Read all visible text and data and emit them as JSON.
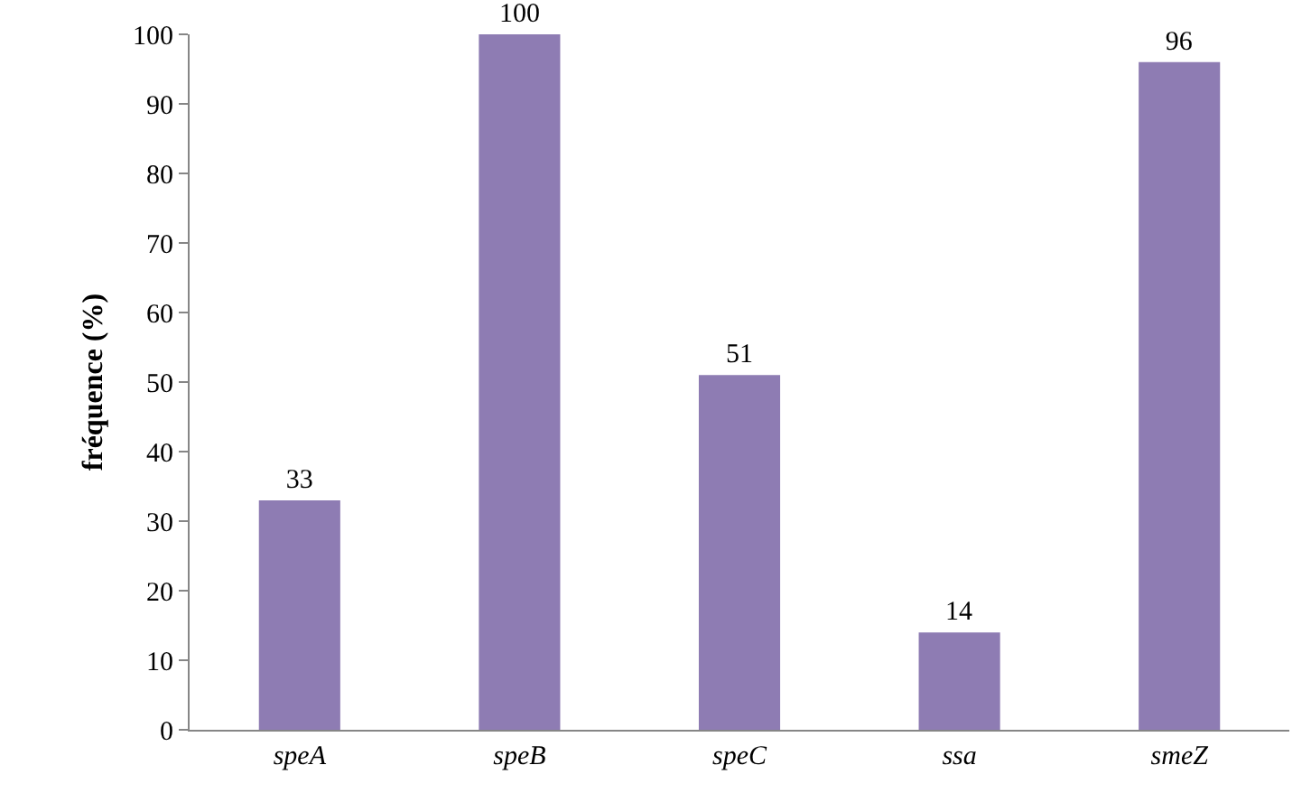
{
  "chart_data": {
    "type": "bar",
    "ylabel": "fréquence (%)",
    "categories": [
      "speA",
      "speB",
      "speC",
      "ssa",
      "smeZ"
    ],
    "values": [
      33,
      100,
      51,
      14,
      96
    ],
    "color": "#8e7cb3",
    "ylim": [
      0,
      100
    ],
    "yticks": [
      0,
      10,
      20,
      30,
      40,
      50,
      60,
      70,
      80,
      90,
      100
    ],
    "data_labels": true
  }
}
